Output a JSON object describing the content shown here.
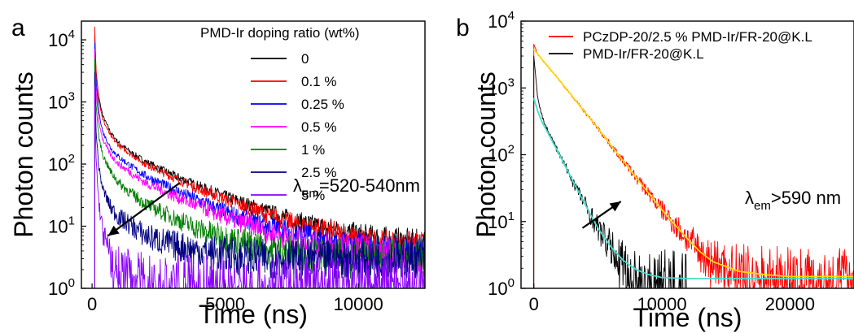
{
  "chart_data": [
    {
      "panel_label": "a",
      "type": "line",
      "xlabel": "Time (ns)",
      "ylabel": "Photon counts",
      "x_scale": "linear",
      "y_scale": "log",
      "xlim": [
        -400,
        12500
      ],
      "ylim": [
        1,
        20000
      ],
      "xticks": [
        0,
        5000,
        10000
      ],
      "yticks": [
        1,
        10,
        100,
        1000,
        10000
      ],
      "legend_title": "PMD-Ir doping ratio (wt%)",
      "legend_position": "top-right",
      "annotation": "=520-540nm",
      "annotation_symbol": "λ",
      "annotation_sub": "em",
      "arrow": {
        "from": [
          3300,
          50
        ],
        "to": [
          600,
          7
        ]
      },
      "series": [
        {
          "name": "0",
          "color": "#000000",
          "x": [
            100,
            150,
            250,
            400,
            700,
            1000,
            1500,
            2000,
            3000,
            4000,
            5000,
            6000,
            7000,
            8000,
            9000,
            10000,
            11000,
            12500
          ],
          "y": [
            12000,
            3000,
            1200,
            600,
            320,
            220,
            150,
            110,
            68,
            44,
            30,
            21,
            15,
            11,
            9,
            7,
            6,
            5
          ]
        },
        {
          "name": "0.1 %",
          "color": "#ff0000",
          "x": [
            100,
            150,
            250,
            400,
            700,
            1000,
            1500,
            2000,
            3000,
            4000,
            5000,
            6000,
            7000,
            8000,
            9000,
            10000,
            11000,
            12500
          ],
          "y": [
            16000,
            3300,
            1100,
            520,
            280,
            200,
            140,
            100,
            62,
            40,
            27,
            19,
            13,
            10,
            8,
            6,
            5,
            4.5
          ]
        },
        {
          "name": "0.25 %",
          "color": "#0000ff",
          "x": [
            100,
            150,
            250,
            400,
            700,
            1000,
            1500,
            2000,
            3000,
            4000,
            5000,
            6000,
            7000,
            8000,
            9000,
            10000,
            11000,
            12500
          ],
          "y": [
            9000,
            2200,
            700,
            330,
            180,
            130,
            90,
            65,
            40,
            26,
            17,
            12,
            9,
            7,
            5,
            4.5,
            4,
            3.5
          ]
        },
        {
          "name": "0.5 %",
          "color": "#ff00ff",
          "x": [
            100,
            150,
            250,
            400,
            700,
            1000,
            1500,
            2000,
            3000,
            4000,
            5000,
            6000,
            7000,
            8000,
            9000,
            10000,
            11000,
            12500
          ],
          "y": [
            7000,
            1500,
            500,
            250,
            140,
            100,
            70,
            50,
            32,
            21,
            14,
            10,
            7,
            5.5,
            4.5,
            4,
            3.5,
            3
          ]
        },
        {
          "name": "1 %",
          "color": "#008000",
          "x": [
            100,
            150,
            250,
            400,
            700,
            1000,
            1500,
            2000,
            3000,
            4000,
            5000,
            6000,
            7000,
            8000,
            9000,
            10000,
            11000,
            12500
          ],
          "y": [
            5000,
            900,
            280,
            140,
            75,
            50,
            33,
            23,
            14,
            9,
            6.5,
            5,
            4,
            3.5,
            3,
            3,
            3,
            3
          ]
        },
        {
          "name": "2.5 %",
          "color": "#000080",
          "x": [
            100,
            150,
            250,
            400,
            700,
            1000,
            1500,
            2000,
            3000,
            4000,
            5000,
            6000,
            7000,
            8000,
            9000,
            10000,
            11000,
            12500
          ],
          "y": [
            3000,
            350,
            90,
            40,
            20,
            14,
            10,
            7,
            5,
            4,
            3.5,
            3,
            3,
            3,
            3,
            3,
            3,
            3
          ]
        },
        {
          "name": "5 %",
          "color": "#8b00ff",
          "x": [
            100,
            150,
            250,
            400,
            700,
            1000,
            1500,
            2000,
            3000,
            4000,
            5000,
            6000,
            7000,
            8000,
            9000,
            10000,
            11000,
            12500
          ],
          "y": [
            1800,
            120,
            25,
            8,
            3,
            2,
            1.5,
            1.2,
            1,
            1,
            1,
            1,
            1,
            1,
            1,
            1,
            1,
            1
          ]
        }
      ]
    },
    {
      "panel_label": "b",
      "type": "line",
      "xlabel": "Time (ns)",
      "ylabel": "Photon counts",
      "x_scale": "linear",
      "y_scale": "log",
      "xlim": [
        -1000,
        25000
      ],
      "ylim": [
        1,
        10000
      ],
      "xticks": [
        0,
        10000,
        20000
      ],
      "yticks": [
        1,
        10,
        100,
        1000,
        10000
      ],
      "legend_position": "top-right",
      "annotation": ">590 nm",
      "annotation_symbol": "λ",
      "annotation_sub": "em",
      "arrow": {
        "from": [
          3800,
          8
        ],
        "to": [
          6800,
          20
        ]
      },
      "series": [
        {
          "name": "PCzDP-20/2.5 % PMD-Ir/FR-20@K.L",
          "color": "#ff0000",
          "x": [
            0,
            300,
            1000,
            2000,
            3000,
            4000,
            5000,
            6000,
            7000,
            8000,
            9000,
            10000,
            11000,
            12000,
            13000,
            14000,
            16000,
            18000,
            20000,
            22000,
            25000
          ],
          "y": [
            4500,
            3200,
            2200,
            1300,
            750,
            430,
            250,
            140,
            80,
            45,
            26,
            15,
            9,
            5.5,
            3.5,
            2.5,
            1.8,
            1.6,
            1.5,
            1.5,
            1.5
          ]
        },
        {
          "name": "PMD-Ir/FR-20@K.L",
          "color": "#000000",
          "x": [
            0,
            300,
            600,
            1000,
            2000,
            3000,
            4000,
            5000,
            6000,
            7000,
            8000,
            9000,
            10000,
            11000,
            12000
          ],
          "y": [
            3000,
            700,
            400,
            250,
            100,
            42,
            18,
            8,
            4,
            2.3,
            1.6,
            1.3,
            1.2,
            1.1,
            1.0
          ]
        },
        {
          "fit": true,
          "color": "#ffd700",
          "x": [
            0,
            1000,
            2000,
            3000,
            4000,
            5000,
            6000,
            7000,
            8000,
            9000,
            10000,
            11000,
            12000,
            13000,
            14000,
            16000,
            18000,
            20000,
            22000,
            25000
          ],
          "y": [
            3800,
            2200,
            1300,
            750,
            430,
            250,
            140,
            80,
            45,
            26,
            15,
            9,
            5.5,
            3.5,
            2.5,
            1.8,
            1.6,
            1.5,
            1.5,
            1.5
          ]
        },
        {
          "fit": true,
          "color": "#40e0d0",
          "x": [
            0,
            300,
            600,
            1000,
            2000,
            3000,
            4000,
            5000,
            6000,
            7000,
            8000,
            9000,
            10000,
            12000,
            14000,
            18000,
            22000,
            25000
          ],
          "y": [
            700,
            450,
            320,
            230,
            100,
            42,
            18,
            8,
            4.2,
            2.6,
            1.9,
            1.6,
            1.45,
            1.4,
            1.4,
            1.4,
            1.4,
            1.4
          ]
        }
      ]
    }
  ]
}
